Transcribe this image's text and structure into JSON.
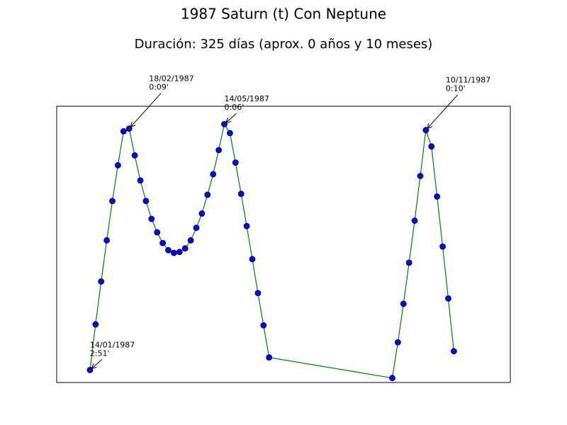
{
  "chart_data": {
    "type": "line",
    "title": "1987 Saturn (t) Con Neptune",
    "subtitle": "Duración: 325 días (aprox. 0 años y 10 meses)",
    "x": [
      0,
      5,
      10,
      15,
      20,
      25,
      30,
      35,
      40,
      45,
      50,
      55,
      60,
      65,
      70,
      75,
      80,
      85,
      90,
      95,
      100,
      105,
      110,
      115,
      120,
      125,
      130,
      135,
      140,
      145,
      150,
      155,
      160,
      270,
      275,
      280,
      285,
      290,
      295,
      300,
      305,
      310,
      315,
      320,
      325
    ],
    "series": [
      {
        "name": "Saturn (t) Con Neptune",
        "color": "#008000",
        "marker_color": "#0000ff",
        "values": [
          2.85,
          2.34,
          1.86,
          1.4,
          0.96,
          0.56,
          0.18,
          0.15,
          0.45,
          0.73,
          0.96,
          1.16,
          1.31,
          1.43,
          1.51,
          1.54,
          1.53,
          1.49,
          1.4,
          1.26,
          1.1,
          0.89,
          0.66,
          0.39,
          0.1,
          0.2,
          0.53,
          0.88,
          1.24,
          1.61,
          1.99,
          2.35,
          2.71,
          2.94,
          2.54,
          2.11,
          1.65,
          1.18,
          0.68,
          0.167,
          0.35,
          0.91,
          1.47,
          2.05,
          2.64
        ]
      }
    ],
    "xlim": [
      -29.7,
      375.4
    ],
    "ylim": [
      -0.1,
      2.99
    ],
    "y_inverted": true,
    "annotations": [
      {
        "lines": [
          "14/01/1987",
          "2:51'"
        ],
        "x": 0,
        "y": 2.85
      },
      {
        "lines": [
          "18/02/1987",
          "0:09'"
        ],
        "x": 35,
        "y": 0.15
      },
      {
        "lines": [
          "14/05/1987",
          "0:06'"
        ],
        "x": 120,
        "y": 0.1
      },
      {
        "lines": [
          "10/11/1987",
          "0:10'"
        ],
        "x": 300,
        "y": 0.167
      }
    ]
  }
}
